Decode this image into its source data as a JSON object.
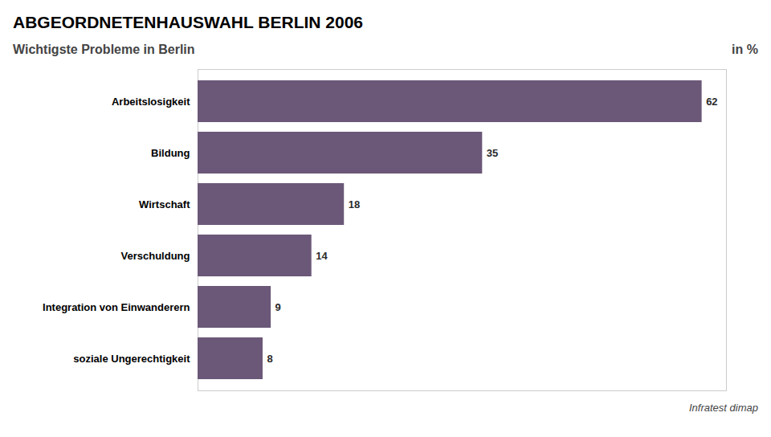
{
  "chart_data": {
    "type": "bar",
    "orientation": "horizontal",
    "title": "ABGEORDNETENHAUSWAHL BERLIN 2006",
    "subtitle": "Wichtigste Probleme in Berlin",
    "xlabel": "in %",
    "source": "Infratest dimap",
    "categories": [
      "Arbeitslosigkeit",
      "Bildung",
      "Wirtschaft",
      "Verschuldung",
      "Integration von Einwanderern",
      "soziale Ungerechtigkeit"
    ],
    "values": [
      62,
      35,
      18,
      14,
      9,
      8
    ],
    "color": "#6b5878",
    "xlim": [
      0,
      65
    ],
    "data_labels": true,
    "tick_labels": "y",
    "grid": false
  }
}
